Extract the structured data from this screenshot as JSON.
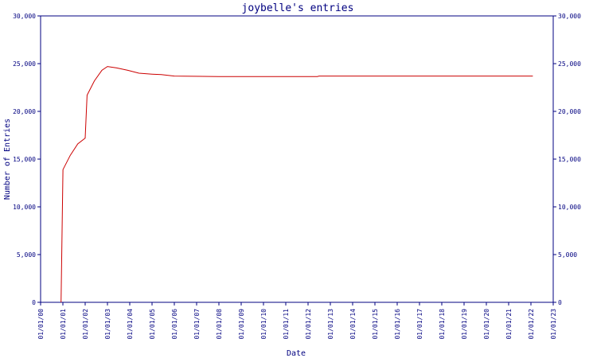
{
  "chart_data": {
    "type": "line",
    "title": "joybelle's entries",
    "xlabel": "Date",
    "ylabel": "Number of Entries",
    "ylim": [
      0,
      30000
    ],
    "yticks": [
      0,
      5000,
      10000,
      15000,
      20000,
      25000,
      30000
    ],
    "ytick_labels": [
      "0",
      "5,000",
      "10,000",
      "15,000",
      "20,000",
      "25,000",
      "30,000"
    ],
    "xticks": [
      "01/01/00",
      "01/01/01",
      "01/01/02",
      "01/01/03",
      "01/01/04",
      "01/01/05",
      "01/01/06",
      "01/01/07",
      "01/01/08",
      "01/01/09",
      "01/01/10",
      "01/01/11",
      "01/01/12",
      "01/01/13",
      "01/01/14",
      "01/01/15",
      "01/01/16",
      "01/01/17",
      "01/01/18",
      "01/01/19",
      "01/01/20",
      "01/01/21",
      "01/01/22",
      "01/01/23"
    ],
    "xlim": [
      "2000-01-01",
      "2023-01-01"
    ],
    "grid": false,
    "series": [
      {
        "color": "#cc0000",
        "points": [
          {
            "x": "2000-12-01",
            "y": 0
          },
          {
            "x": "2001-01-01",
            "y": 13900
          },
          {
            "x": "2001-05-01",
            "y": 15400
          },
          {
            "x": "2001-09-01",
            "y": 16600
          },
          {
            "x": "2002-01-01",
            "y": 17200
          },
          {
            "x": "2002-02-01",
            "y": 21700
          },
          {
            "x": "2002-06-01",
            "y": 23200
          },
          {
            "x": "2002-10-01",
            "y": 24300
          },
          {
            "x": "2003-01-01",
            "y": 24700
          },
          {
            "x": "2003-06-01",
            "y": 24550
          },
          {
            "x": "2003-12-01",
            "y": 24300
          },
          {
            "x": "2004-06-01",
            "y": 24000
          },
          {
            "x": "2005-01-01",
            "y": 23900
          },
          {
            "x": "2005-06-01",
            "y": 23850
          },
          {
            "x": "2006-01-01",
            "y": 23700
          },
          {
            "x": "2008-01-01",
            "y": 23650
          },
          {
            "x": "2010-01-01",
            "y": 23650
          },
          {
            "x": "2012-06-01",
            "y": 23650
          },
          {
            "x": "2012-07-01",
            "y": 23700
          },
          {
            "x": "2015-01-01",
            "y": 23700
          },
          {
            "x": "2018-01-01",
            "y": 23700
          },
          {
            "x": "2022-02-01",
            "y": 23700
          }
        ]
      }
    ]
  },
  "colors": {
    "axis": "#000080",
    "line": "#cc0000",
    "background": "#ffffff"
  }
}
